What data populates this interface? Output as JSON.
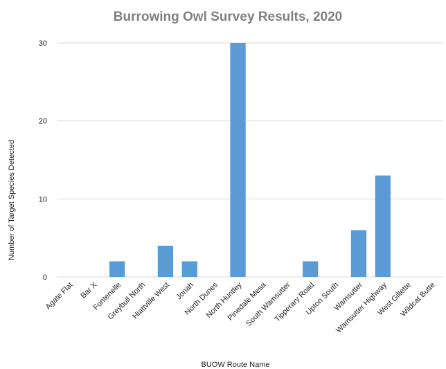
{
  "chart_data": {
    "type": "bar",
    "title": "Burrowing Owl Survey Results, 2020",
    "xlabel": "BUOW Route Name",
    "ylabel": "Number of Target Species Detected",
    "categories": [
      "Agate Flat",
      "Bar X",
      "Fontenelle",
      "Greybull North",
      "Hiattville West",
      "Jonah",
      "North Dunes",
      "North Huntley",
      "Pinedale Mesa",
      "South Wamsutter",
      "Tipperary Road",
      "Upton South",
      "Wamsutter",
      "Wamsutter Highway",
      "West Gillette",
      "Wildcat Butte"
    ],
    "values": [
      0,
      0,
      2,
      0,
      4,
      2,
      0,
      30,
      0,
      0,
      2,
      0,
      6,
      13,
      0,
      0
    ],
    "ylim": [
      0,
      30
    ],
    "yticks": [
      0,
      10,
      20,
      30
    ],
    "grid": true,
    "legend": "none",
    "bar_color": "#5b9bd5"
  }
}
